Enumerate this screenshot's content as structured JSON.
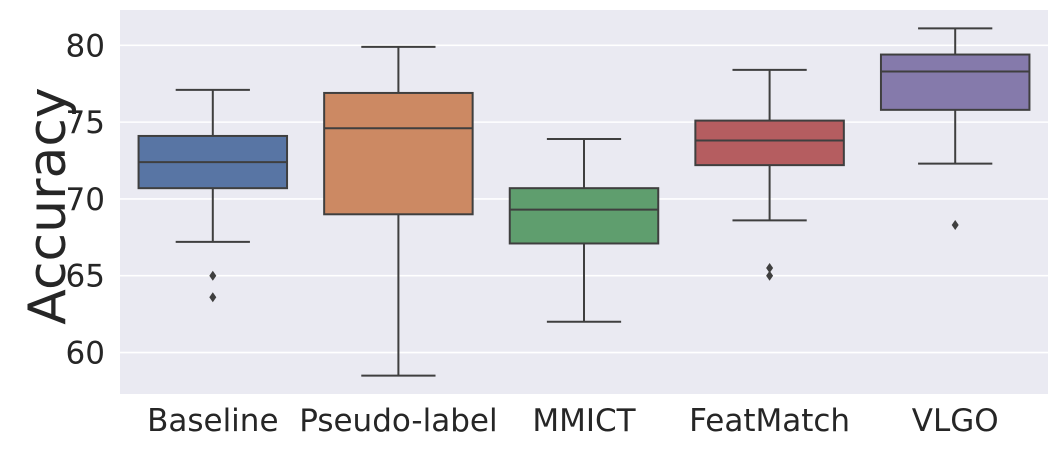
{
  "chart_data": {
    "type": "box",
    "title": "",
    "xlabel": "",
    "ylabel": "Accuracy",
    "ylim": [
      57.3,
      82.3
    ],
    "yticks": [
      60,
      65,
      70,
      75,
      80
    ],
    "grid": true,
    "background": "#eaeaf2",
    "categories": [
      "Baseline",
      "Pseudo-label",
      "MMICT",
      "FeatMatch",
      "VLGO"
    ],
    "colors": [
      "#5875a4",
      "#cc8963",
      "#5f9e6e",
      "#b55d60",
      "#857aab"
    ],
    "boxes": [
      {
        "name": "Baseline",
        "whislo": 67.2,
        "q1": 70.7,
        "med": 72.4,
        "q3": 74.1,
        "whishi": 77.1,
        "fliers": [
          65.0,
          63.6
        ]
      },
      {
        "name": "Pseudo-label",
        "whislo": 58.5,
        "q1": 69.0,
        "med": 74.6,
        "q3": 76.9,
        "whishi": 79.9,
        "fliers": []
      },
      {
        "name": "MMICT",
        "whislo": 62.0,
        "q1": 67.1,
        "med": 69.3,
        "q3": 70.7,
        "whishi": 73.9,
        "fliers": []
      },
      {
        "name": "FeatMatch",
        "whislo": 68.6,
        "q1": 72.2,
        "med": 73.8,
        "q3": 75.1,
        "whishi": 78.4,
        "fliers": [
          65.5,
          65.0
        ]
      },
      {
        "name": "VLGO",
        "whislo": 72.3,
        "q1": 75.8,
        "med": 78.3,
        "q3": 79.4,
        "whishi": 81.1,
        "fliers": [
          68.3
        ]
      }
    ]
  }
}
